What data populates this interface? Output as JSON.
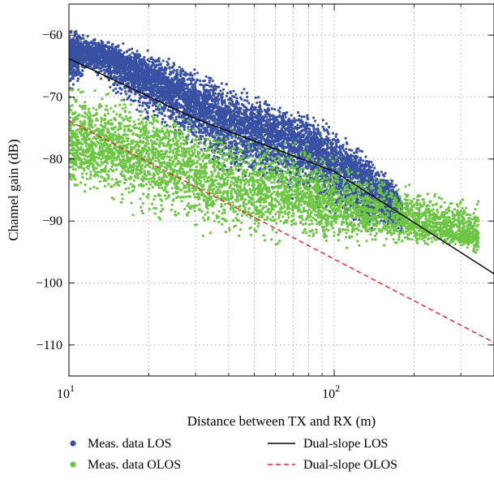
{
  "chart_data": {
    "type": "scatter",
    "title": "",
    "xlabel": "Distance between TX and RX (m)",
    "ylabel": "Channel gain (dB)",
    "xscale": "log",
    "xlim": [
      10,
      400
    ],
    "ylim": [
      -115,
      -55
    ],
    "grid": true,
    "legend_position": "bottom",
    "x_ticks": [
      {
        "value": 10,
        "base": "10",
        "exp": "1"
      },
      {
        "value": 100,
        "base": "10",
        "exp": "2"
      }
    ],
    "y_ticks": [
      -60,
      -70,
      -80,
      -90,
      -100,
      -110
    ],
    "y_tick_labels": [
      "−60",
      "−70",
      "−80",
      "−90",
      "−100",
      "−110"
    ],
    "scatter_series": [
      {
        "name": "Meas. data LOS",
        "color": "#3951a3",
        "approx_points": 7000,
        "note_x_range": [
          10,
          180
        ],
        "upper_envelope": [
          [
            10,
            -58
          ],
          [
            12,
            -60
          ],
          [
            20,
            -62
          ],
          [
            40,
            -67
          ],
          [
            80,
            -72
          ],
          [
            120,
            -77
          ],
          [
            170,
            -83
          ],
          [
            180,
            -88
          ]
        ],
        "lower_envelope": [
          [
            10,
            -70
          ],
          [
            12,
            -66
          ],
          [
            20,
            -75
          ],
          [
            40,
            -83
          ],
          [
            80,
            -88
          ],
          [
            120,
            -92
          ],
          [
            180,
            -93
          ]
        ],
        "density_center": [
          [
            10,
            -63
          ],
          [
            13,
            -63
          ],
          [
            20,
            -67
          ],
          [
            40,
            -74
          ],
          [
            80,
            -78
          ],
          [
            120,
            -83
          ],
          [
            170,
            -87
          ]
        ]
      },
      {
        "name": "Meas. data OLOS",
        "color": "#6cc644",
        "approx_points": 5000,
        "note_x_range": [
          10,
          350
        ],
        "upper_envelope": [
          [
            10,
            -66
          ],
          [
            12,
            -67
          ],
          [
            22,
            -70
          ],
          [
            40,
            -74
          ],
          [
            80,
            -76
          ],
          [
            120,
            -80
          ],
          [
            200,
            -84
          ],
          [
            330,
            -86
          ]
        ],
        "lower_envelope": [
          [
            10,
            -86
          ],
          [
            14,
            -88
          ],
          [
            22,
            -92
          ],
          [
            40,
            -94
          ],
          [
            80,
            -95
          ],
          [
            150,
            -95
          ],
          [
            250,
            -94
          ],
          [
            330,
            -96
          ]
        ],
        "density_center": [
          [
            10,
            -77
          ],
          [
            14,
            -78
          ],
          [
            22,
            -80
          ],
          [
            40,
            -84
          ],
          [
            80,
            -86
          ],
          [
            120,
            -88
          ],
          [
            200,
            -90
          ],
          [
            300,
            -92
          ]
        ]
      }
    ],
    "line_series": [
      {
        "name": "Dual-slope LOS",
        "color": "#000000",
        "style": "solid",
        "points": [
          [
            10,
            -63.8
          ],
          [
            30,
            -73.5
          ],
          [
            100,
            -82.0
          ],
          [
            400,
            -98.5
          ]
        ]
      },
      {
        "name": "Dual-slope OLOS",
        "color": "#e0242a",
        "style": "dashed",
        "points": [
          [
            10,
            -73.8
          ],
          [
            400,
            -109.6
          ]
        ]
      }
    ]
  },
  "legend": {
    "items": [
      {
        "label": "Meas. data LOS",
        "kind": "dot",
        "color": "#3951a3"
      },
      {
        "label": "Meas. data OLOS",
        "kind": "dot",
        "color": "#6cc644"
      },
      {
        "label": "Dual-slope LOS",
        "kind": "solid",
        "color": "#000000"
      },
      {
        "label": "Dual-slope OLOS",
        "kind": "dashed",
        "color": "#e0242a"
      }
    ]
  }
}
